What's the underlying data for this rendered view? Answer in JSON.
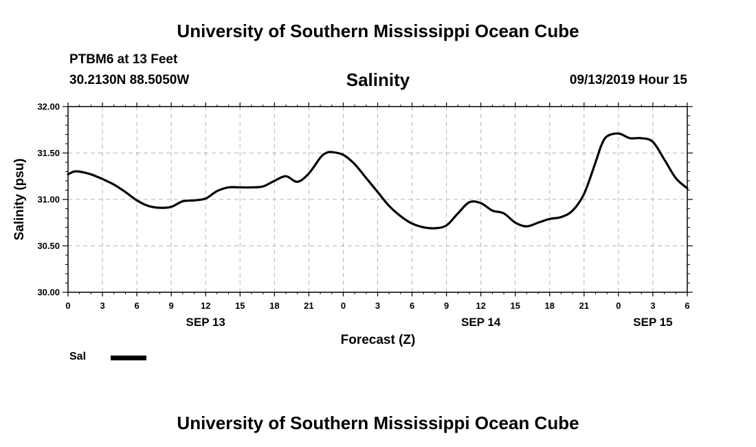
{
  "header": {
    "title": "University of Southern Mississippi Ocean Cube",
    "station": "PTBM6 at 13 Feet",
    "coordinates": "30.2130N 88.5050W",
    "timestamp": "09/13/2019 Hour 15"
  },
  "footer": {
    "title": "University of Southern Mississippi Ocean Cube"
  },
  "chart_data": {
    "type": "line",
    "title": "Salinity",
    "xlabel": "Forecast (Z)",
    "ylabel": "Salinity (psu)",
    "xlim": [
      0,
      54
    ],
    "ylim": [
      30.0,
      32.0
    ],
    "grid": true,
    "x_tick_values": [
      0,
      3,
      6,
      9,
      12,
      15,
      18,
      21,
      24,
      27,
      30,
      33,
      36,
      39,
      42,
      45,
      48,
      51,
      54
    ],
    "x_tick_labels": [
      "0",
      "3",
      "6",
      "9",
      "12",
      "15",
      "18",
      "21",
      "0",
      "3",
      "6",
      "9",
      "12",
      "15",
      "18",
      "21",
      "0",
      "3",
      "6"
    ],
    "y_ticks": [
      30.0,
      30.5,
      31.0,
      31.5,
      32.0
    ],
    "y_tick_labels": [
      "30.00",
      "30.50",
      "31.00",
      "31.50",
      "32.00"
    ],
    "day_labels": [
      {
        "x": 12,
        "label": "SEP 13"
      },
      {
        "x": 36,
        "label": "SEP 14"
      },
      {
        "x": 51,
        "label": "SEP 15"
      }
    ],
    "legend": {
      "position": "bottom-left",
      "entries": [
        "Sal"
      ]
    },
    "series": [
      {
        "name": "Sal",
        "color": "#000000",
        "x": [
          0,
          0.5,
          1,
          2,
          3,
          4,
          5,
          6,
          7,
          8,
          9,
          10,
          11,
          12,
          13,
          14,
          15,
          16,
          17,
          18,
          19,
          20,
          21,
          22,
          22.5,
          23,
          24,
          25,
          26,
          27,
          28,
          29,
          30,
          31,
          32,
          33,
          34,
          35,
          36,
          37,
          38,
          39,
          40,
          41,
          42,
          43,
          44,
          45,
          46,
          46.5,
          47,
          48,
          49,
          50,
          51,
          52,
          53,
          54
        ],
        "values": [
          31.27,
          31.3,
          31.3,
          31.27,
          31.22,
          31.16,
          31.08,
          30.99,
          30.93,
          30.91,
          30.92,
          30.98,
          30.99,
          31.01,
          31.09,
          31.13,
          31.13,
          31.13,
          31.14,
          31.2,
          31.25,
          31.19,
          31.28,
          31.45,
          31.5,
          31.51,
          31.48,
          31.38,
          31.23,
          31.08,
          30.93,
          30.82,
          30.74,
          30.7,
          30.69,
          30.72,
          30.85,
          30.97,
          30.96,
          30.88,
          30.85,
          30.75,
          30.71,
          30.75,
          30.79,
          30.81,
          30.88,
          31.06,
          31.4,
          31.58,
          31.68,
          31.71,
          31.66,
          31.66,
          31.62,
          31.43,
          31.23,
          31.12
        ]
      }
    ]
  }
}
